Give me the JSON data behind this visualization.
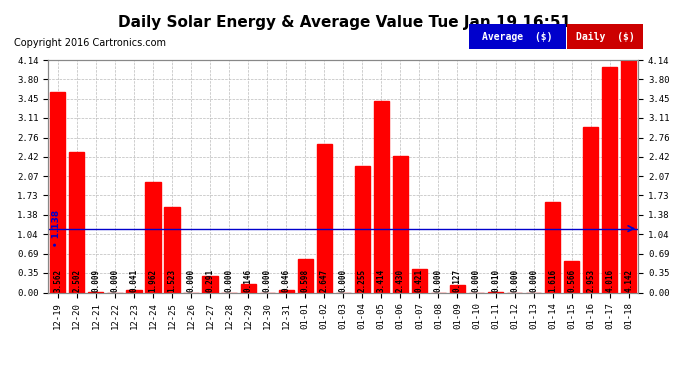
{
  "title": "Daily Solar Energy & Average Value Tue Jan 19 16:51",
  "copyright": "Copyright 2016 Cartronics.com",
  "categories": [
    "12-19",
    "12-20",
    "12-21",
    "12-22",
    "12-23",
    "12-24",
    "12-25",
    "12-26",
    "12-27",
    "12-28",
    "12-29",
    "12-30",
    "12-31",
    "01-01",
    "01-02",
    "01-03",
    "01-04",
    "01-05",
    "01-06",
    "01-07",
    "01-08",
    "01-09",
    "01-10",
    "01-11",
    "01-12",
    "01-13",
    "01-14",
    "01-15",
    "01-16",
    "01-17",
    "01-18"
  ],
  "values": [
    3.562,
    2.502,
    0.009,
    0.0,
    0.041,
    1.962,
    1.523,
    0.0,
    0.291,
    0.0,
    0.146,
    0.0,
    0.046,
    0.598,
    2.647,
    0.0,
    2.255,
    3.414,
    2.43,
    0.421,
    0.0,
    0.127,
    0.0,
    0.01,
    0.0,
    0.0,
    1.616,
    0.566,
    2.953,
    4.016,
    4.142
  ],
  "average": 1.138,
  "bar_color": "#FF0000",
  "avg_line_color": "#0000CC",
  "background_color": "#FFFFFF",
  "grid_color": "#AAAAAA",
  "ylim_max": 4.14,
  "yticks": [
    0.0,
    0.35,
    0.69,
    1.04,
    1.38,
    1.73,
    2.07,
    2.42,
    2.76,
    3.11,
    3.45,
    3.8,
    4.14
  ],
  "legend_avg_bg": "#0000CC",
  "legend_daily_bg": "#CC0000",
  "legend_avg_text": "Average  ($)",
  "legend_daily_text": "Daily  ($)",
  "avg_label": "1.138",
  "title_fontsize": 11,
  "tick_fontsize": 6.5,
  "value_fontsize": 5.5,
  "copyright_fontsize": 7
}
